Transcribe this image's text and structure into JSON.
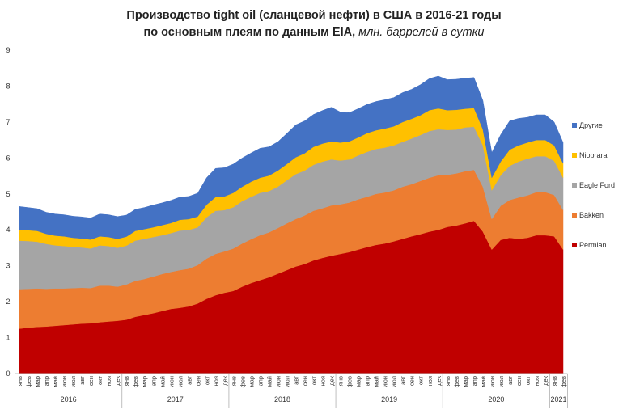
{
  "chart_data": {
    "type": "area",
    "stacked": true,
    "title_line1": "Производство tight oil (сланцевой нефти) в США в 2016-21 годы",
    "title_line2_bold": "по основным плеям по данным EIA,",
    "title_line2_italic": " млн. баррелей в сутки",
    "ylim": [
      0,
      9
    ],
    "yticks": [
      0,
      1,
      2,
      3,
      4,
      5,
      6,
      7,
      8,
      9
    ],
    "month_labels": [
      "янв",
      "фев",
      "мар",
      "апр",
      "май",
      "июн",
      "июл",
      "авг",
      "сен",
      "окт",
      "ноя",
      "дек",
      "янв",
      "фев",
      "мар",
      "апр",
      "май",
      "июн",
      "июл",
      "авг",
      "сен",
      "окт",
      "ноя",
      "дек",
      "янв",
      "фев",
      "мар",
      "апр",
      "май",
      "июн",
      "июл",
      "авг",
      "сен",
      "окт",
      "ноя",
      "дек",
      "янв",
      "фев",
      "мар",
      "апр",
      "май",
      "июн",
      "июл",
      "авг",
      "сен",
      "окт",
      "ноя",
      "дек",
      "янв",
      "фев",
      "мар",
      "апр",
      "май",
      "июн",
      "июл",
      "авг",
      "сен",
      "окт",
      "ноя",
      "дек",
      "янв",
      "фев"
    ],
    "years": [
      {
        "label": "2016",
        "start": 0,
        "count": 12
      },
      {
        "label": "2017",
        "start": 12,
        "count": 12
      },
      {
        "label": "2018",
        "start": 24,
        "count": 12
      },
      {
        "label": "2019",
        "start": 36,
        "count": 12
      },
      {
        "label": "2020",
        "start": 48,
        "count": 12
      },
      {
        "label": "2021",
        "start": 60,
        "count": 2
      }
    ],
    "series": [
      {
        "name": "Permian",
        "color": "#c00000",
        "values": [
          1.25,
          1.28,
          1.3,
          1.31,
          1.33,
          1.35,
          1.37,
          1.39,
          1.4,
          1.43,
          1.45,
          1.47,
          1.5,
          1.58,
          1.63,
          1.68,
          1.74,
          1.8,
          1.83,
          1.87,
          1.95,
          2.08,
          2.18,
          2.25,
          2.3,
          2.42,
          2.52,
          2.6,
          2.68,
          2.78,
          2.88,
          2.98,
          3.05,
          3.15,
          3.22,
          3.28,
          3.33,
          3.38,
          3.45,
          3.52,
          3.58,
          3.62,
          3.68,
          3.75,
          3.82,
          3.88,
          3.95,
          4.0,
          4.08,
          4.12,
          4.18,
          4.25,
          3.95,
          3.45,
          3.72,
          3.78,
          3.75,
          3.78,
          3.85,
          3.85,
          3.82,
          3.45
        ]
      },
      {
        "name": "Bakken",
        "color": "#ed7d31",
        "values": [
          1.1,
          1.08,
          1.07,
          1.05,
          1.04,
          1.02,
          1.01,
          1.0,
          0.98,
          1.02,
          1.0,
          0.95,
          0.98,
          1.0,
          1.0,
          1.02,
          1.03,
          1.03,
          1.05,
          1.05,
          1.07,
          1.12,
          1.15,
          1.15,
          1.18,
          1.2,
          1.22,
          1.25,
          1.25,
          1.27,
          1.3,
          1.32,
          1.35,
          1.38,
          1.38,
          1.4,
          1.38,
          1.38,
          1.4,
          1.4,
          1.42,
          1.42,
          1.42,
          1.45,
          1.45,
          1.48,
          1.5,
          1.52,
          1.45,
          1.45,
          1.45,
          1.42,
          1.25,
          0.85,
          0.95,
          1.05,
          1.15,
          1.18,
          1.2,
          1.2,
          1.15,
          1.1
        ]
      },
      {
        "name": "Eagle Ford",
        "color": "#a5a5a5",
        "values": [
          1.35,
          1.33,
          1.3,
          1.25,
          1.2,
          1.18,
          1.15,
          1.12,
          1.1,
          1.12,
          1.1,
          1.08,
          1.08,
          1.12,
          1.12,
          1.1,
          1.08,
          1.08,
          1.1,
          1.08,
          1.05,
          1.15,
          1.2,
          1.15,
          1.15,
          1.18,
          1.18,
          1.18,
          1.15,
          1.15,
          1.2,
          1.25,
          1.25,
          1.28,
          1.3,
          1.28,
          1.22,
          1.2,
          1.22,
          1.25,
          1.25,
          1.25,
          1.25,
          1.25,
          1.27,
          1.28,
          1.3,
          1.28,
          1.25,
          1.22,
          1.22,
          1.2,
          1.15,
          0.8,
          0.85,
          0.95,
          1.0,
          1.02,
          1.0,
          1.0,
          0.95,
          0.9
        ]
      },
      {
        "name": "Niobrara",
        "color": "#ffc000",
        "values": [
          0.3,
          0.3,
          0.3,
          0.28,
          0.27,
          0.27,
          0.25,
          0.25,
          0.25,
          0.25,
          0.25,
          0.25,
          0.25,
          0.27,
          0.27,
          0.27,
          0.28,
          0.28,
          0.3,
          0.3,
          0.3,
          0.35,
          0.38,
          0.38,
          0.4,
          0.4,
          0.42,
          0.42,
          0.43,
          0.45,
          0.45,
          0.47,
          0.48,
          0.5,
          0.5,
          0.5,
          0.5,
          0.5,
          0.5,
          0.52,
          0.52,
          0.53,
          0.53,
          0.55,
          0.55,
          0.55,
          0.58,
          0.58,
          0.55,
          0.55,
          0.52,
          0.52,
          0.45,
          0.35,
          0.38,
          0.45,
          0.45,
          0.45,
          0.45,
          0.45,
          0.43,
          0.4
        ]
      },
      {
        "name": "Другие",
        "color": "#4472c4",
        "values": [
          0.65,
          0.63,
          0.62,
          0.6,
          0.6,
          0.6,
          0.6,
          0.6,
          0.6,
          0.62,
          0.62,
          0.62,
          0.6,
          0.6,
          0.6,
          0.62,
          0.62,
          0.63,
          0.63,
          0.63,
          0.65,
          0.75,
          0.8,
          0.8,
          0.8,
          0.8,
          0.8,
          0.82,
          0.8,
          0.8,
          0.85,
          0.9,
          0.9,
          0.9,
          0.92,
          0.95,
          0.85,
          0.8,
          0.8,
          0.8,
          0.8,
          0.8,
          0.8,
          0.82,
          0.82,
          0.85,
          0.88,
          0.9,
          0.85,
          0.85,
          0.85,
          0.85,
          0.8,
          0.7,
          0.75,
          0.8,
          0.75,
          0.7,
          0.7,
          0.7,
          0.65,
          0.58
        ]
      }
    ],
    "legend_order": [
      "Другие",
      "Niobrara",
      "Eagle Ford",
      "Bakken",
      "Permian"
    ]
  }
}
